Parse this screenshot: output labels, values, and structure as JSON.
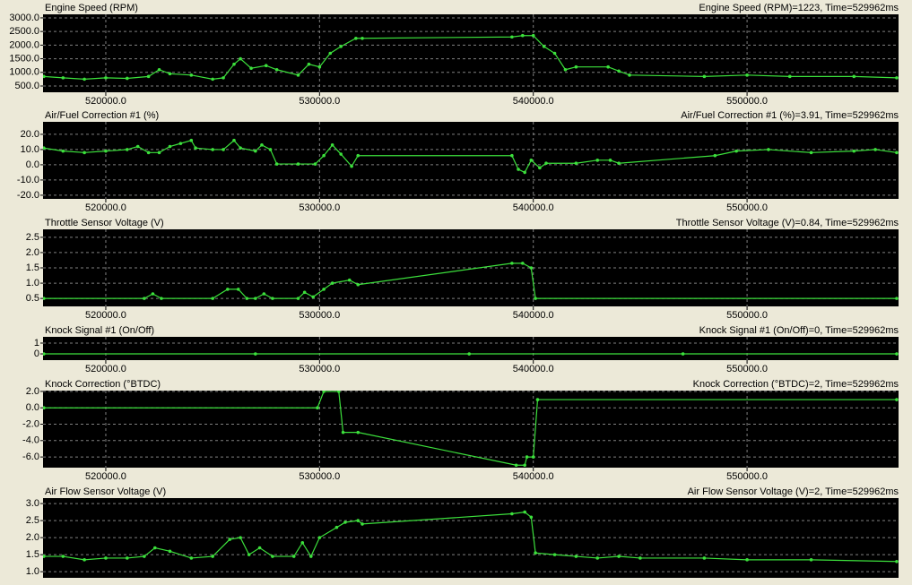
{
  "chart_data": [
    {
      "type": "line",
      "title": "Engine Speed (RPM)",
      "readout": "Engine Speed (RPM)=1223, Time=529962ms",
      "color": "#3ce03c",
      "grid": true,
      "xlim": [
        517065,
        557086
      ],
      "ylim": [
        270,
        3130
      ],
      "xticks": [
        {
          "value": 520000,
          "label": "520000.0"
        },
        {
          "value": 530000,
          "label": "530000.0"
        },
        {
          "value": 540000,
          "label": "540000.0"
        },
        {
          "value": 550000,
          "label": "550000.0"
        }
      ],
      "yticks": [
        {
          "value": 3000,
          "label": "3000.0"
        },
        {
          "value": 2500,
          "label": "2500.0"
        },
        {
          "value": 2000,
          "label": "2000.0"
        },
        {
          "value": 1500,
          "label": "1500.0"
        },
        {
          "value": 1000,
          "label": "1000.0"
        },
        {
          "value": 500,
          "label": "500.0"
        }
      ],
      "x": [
        517100,
        518000,
        519000,
        520000,
        521000,
        522000,
        522500,
        523000,
        524000,
        525000,
        525500,
        526000,
        526300,
        526800,
        527500,
        528000,
        529000,
        529500,
        530000,
        530500,
        531000,
        531700,
        532000,
        539000,
        539500,
        540000,
        540500,
        541000,
        541500,
        542000,
        543500,
        544000,
        544500,
        548000,
        550000,
        552000,
        555000,
        557000
      ],
      "values": [
        850,
        800,
        750,
        800,
        780,
        850,
        1100,
        950,
        900,
        750,
        800,
        1300,
        1500,
        1150,
        1250,
        1100,
        900,
        1300,
        1200,
        1700,
        1950,
        2250,
        2250,
        2300,
        2350,
        2350,
        1950,
        1700,
        1100,
        1200,
        1200,
        1050,
        900,
        850,
        900,
        850,
        850,
        800
      ]
    },
    {
      "type": "line",
      "title": "Air/Fuel Correction #1 (%)",
      "readout": "Air/Fuel Correction #1 (%)=3.91, Time=529962ms",
      "color": "#3ce03c",
      "grid": true,
      "xlim": [
        517065,
        557086
      ],
      "ylim": [
        -22.4,
        28.2
      ],
      "xticks": [
        {
          "value": 520000,
          "label": "520000.0"
        },
        {
          "value": 530000,
          "label": "530000.0"
        },
        {
          "value": 540000,
          "label": "540000.0"
        },
        {
          "value": 550000,
          "label": "550000.0"
        }
      ],
      "yticks": [
        {
          "value": 20,
          "label": "20.0"
        },
        {
          "value": 10,
          "label": "10.0"
        },
        {
          "value": 0,
          "label": "0.0"
        },
        {
          "value": -10,
          "label": "-10.0"
        },
        {
          "value": -20,
          "label": "-20.0"
        }
      ],
      "x": [
        517100,
        518000,
        519000,
        520000,
        521000,
        521500,
        522000,
        522500,
        523000,
        523500,
        524000,
        524200,
        525000,
        525500,
        526000,
        526300,
        527000,
        527300,
        527700,
        528000,
        529000,
        529800,
        530200,
        530600,
        531000,
        531500,
        531800,
        539000,
        539300,
        539600,
        539900,
        540300,
        540600,
        542000,
        543000,
        543600,
        544000,
        548500,
        549500,
        551000,
        553000,
        555000,
        556000,
        557000
      ],
      "values": [
        11,
        9,
        8,
        9,
        10,
        12,
        8,
        8,
        12,
        14,
        16,
        11,
        10,
        10,
        16,
        11,
        9,
        13,
        10,
        0.5,
        0.5,
        0.5,
        6,
        13,
        7,
        -1,
        6,
        6,
        -3,
        -5,
        3,
        -2,
        1,
        1,
        3,
        3,
        1,
        6,
        9,
        10,
        8,
        9,
        10,
        8
      ]
    },
    {
      "type": "line",
      "title": "Throttle Sensor Voltage (V)",
      "readout": "Throttle Sensor Voltage (V)=0.84, Time=529962ms",
      "color": "#3ce03c",
      "grid": true,
      "xlim": [
        517065,
        557086
      ],
      "ylim": [
        0.24,
        2.76
      ],
      "xticks": [
        {
          "value": 520000,
          "label": "520000.0"
        },
        {
          "value": 530000,
          "label": "530000.0"
        },
        {
          "value": 540000,
          "label": "540000.0"
        },
        {
          "value": 550000,
          "label": "550000.0"
        }
      ],
      "yticks": [
        2.5,
        {
          "value": 2,
          "label": "2.0"
        },
        1.5,
        {
          "value": 1,
          "label": "1.0"
        },
        0.5
      ],
      "x": [
        517100,
        521800,
        522200,
        522600,
        525000,
        525700,
        526200,
        526600,
        527000,
        527400,
        527800,
        529000,
        529300,
        529700,
        530200,
        530600,
        531400,
        531800,
        539000,
        539500,
        539900,
        540100,
        557000
      ],
      "values": [
        0.5,
        0.5,
        0.65,
        0.5,
        0.5,
        0.8,
        0.8,
        0.5,
        0.5,
        0.65,
        0.5,
        0.5,
        0.7,
        0.55,
        0.8,
        1.0,
        1.1,
        0.95,
        1.65,
        1.65,
        1.5,
        0.5,
        0.5
      ]
    },
    {
      "type": "line",
      "title": "Knock Signal #1 (On/Off)",
      "readout": "Knock Signal #1 (On/Off)=0, Time=529962ms",
      "color": "#3ce03c",
      "grid": true,
      "xlim": [
        517065,
        557086
      ],
      "ylim": [
        -0.58,
        1.58
      ],
      "xticks": [
        {
          "value": 520000,
          "label": "520000.0"
        },
        {
          "value": 530000,
          "label": "530000.0"
        },
        {
          "value": 540000,
          "label": "540000.0"
        },
        {
          "value": 550000,
          "label": "550000.0"
        }
      ],
      "yticks": [
        1,
        0
      ],
      "x": [
        517100,
        527000,
        537000,
        547000,
        557000
      ],
      "values": [
        0,
        0,
        0,
        0,
        0
      ]
    },
    {
      "type": "line",
      "title": "Knock Correction (°BTDC)",
      "readout": "Knock Correction (°BTDC)=2, Time=529962ms",
      "color": "#3ce03c",
      "grid": true,
      "xlim": [
        517065,
        557086
      ],
      "ylim": [
        -7.3,
        2.1
      ],
      "xticks": [
        {
          "value": 520000,
          "label": "520000.0"
        },
        {
          "value": 530000,
          "label": "530000.0"
        },
        {
          "value": 540000,
          "label": "540000.0"
        },
        {
          "value": 550000,
          "label": "550000.0"
        }
      ],
      "yticks": [
        {
          "value": 2,
          "label": "2.0"
        },
        {
          "value": 0,
          "label": "0.0"
        },
        {
          "value": -2,
          "label": "-2.0"
        },
        {
          "value": -4,
          "label": "-4.0"
        },
        {
          "value": -6,
          "label": "-6.0"
        }
      ],
      "x": [
        517100,
        529900,
        530200,
        530900,
        531100,
        531800,
        539200,
        539600,
        539700,
        540000,
        540200,
        557000
      ],
      "values": [
        0,
        0,
        2,
        2,
        -3,
        -3,
        -7,
        -7,
        -6,
        -6,
        1,
        1
      ]
    },
    {
      "type": "line",
      "title": "Air Flow Sensor Voltage (V)",
      "readout": "Air Flow Sensor Voltage (V)=2, Time=529962ms",
      "color": "#3ce03c",
      "grid": true,
      "xlim": [
        517065,
        557086
      ],
      "ylim": [
        0.82,
        3.16
      ],
      "yticks": [
        {
          "value": 3,
          "label": "3.0"
        },
        2.5,
        {
          "value": 2,
          "label": "2.0"
        },
        1.5,
        {
          "value": 1,
          "label": "1.0"
        }
      ],
      "x": [
        517100,
        518000,
        519000,
        520000,
        521000,
        521800,
        522300,
        523000,
        524000,
        525000,
        525800,
        526300,
        526700,
        527200,
        527800,
        528800,
        529200,
        529600,
        530000,
        530800,
        531200,
        531800,
        532000,
        539000,
        539600,
        539900,
        540100,
        541000,
        542000,
        543000,
        544000,
        545000,
        548000,
        550000,
        553000,
        557000
      ],
      "values": [
        1.45,
        1.45,
        1.35,
        1.4,
        1.4,
        1.45,
        1.7,
        1.6,
        1.4,
        1.45,
        1.95,
        2.0,
        1.5,
        1.7,
        1.45,
        1.45,
        1.85,
        1.45,
        2.0,
        2.3,
        2.45,
        2.5,
        2.4,
        2.7,
        2.75,
        2.6,
        1.55,
        1.5,
        1.45,
        1.4,
        1.45,
        1.4,
        1.4,
        1.35,
        1.35,
        1.3
      ]
    }
  ]
}
